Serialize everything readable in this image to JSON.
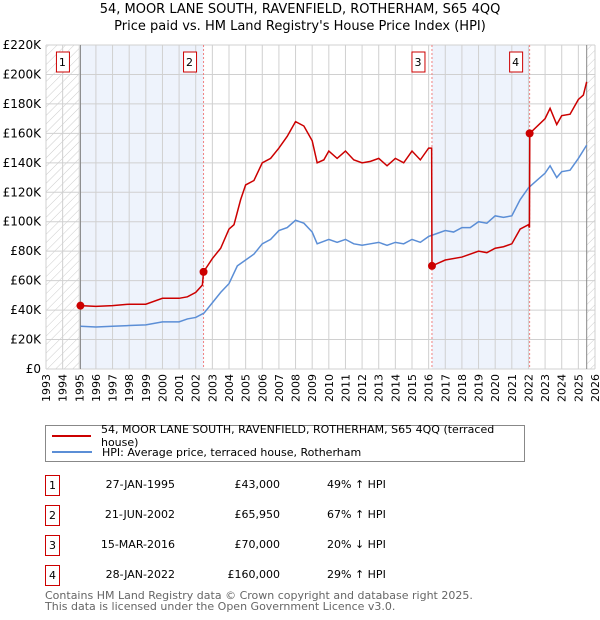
{
  "chart_data": {
    "type": "line",
    "title": "54, MOOR LANE SOUTH, RAVENFIELD, ROTHERHAM, S65 4QQ",
    "subtitle": "Price paid vs. HM Land Registry's House Price Index (HPI)",
    "xlim": [
      1993,
      2026
    ],
    "ylim": [
      0,
      220000
    ],
    "x_ticks": [
      "1993",
      "1994",
      "1995",
      "1996",
      "1997",
      "1998",
      "1999",
      "2000",
      "2001",
      "2002",
      "2003",
      "2004",
      "2005",
      "2006",
      "2007",
      "2008",
      "2009",
      "2010",
      "2011",
      "2012",
      "2013",
      "2014",
      "2015",
      "2016",
      "2017",
      "2018",
      "2019",
      "2020",
      "2021",
      "2022",
      "2023",
      "2024",
      "2025",
      "2026"
    ],
    "y_ticks": [
      "£0",
      "£20K",
      "£40K",
      "£60K",
      "£80K",
      "£100K",
      "£120K",
      "£140K",
      "£160K",
      "£180K",
      "£200K",
      "£220K"
    ],
    "grid": true,
    "series": [
      {
        "name": "54, MOOR LANE SOUTH, RAVENFIELD, ROTHERHAM, S65 4QQ (terraced house)",
        "color": "#cc0000",
        "x": [
          1995.07,
          1996,
          1997,
          1998,
          1999,
          2000,
          2001,
          2001.5,
          2002,
          2002.4,
          2002.47,
          2003,
          2003.5,
          2004,
          2004.3,
          2004.7,
          2005,
          2005.5,
          2006,
          2006.5,
          2007,
          2007.5,
          2008,
          2008.5,
          2009,
          2009.3,
          2009.7,
          2010,
          2010.5,
          2011,
          2011.5,
          2012,
          2012.5,
          2013,
          2013.5,
          2014,
          2014.5,
          2015,
          2015.5,
          2016,
          2016.18,
          2016.2,
          2017,
          2018,
          2019,
          2019.5,
          2020,
          2020.5,
          2021,
          2021.5,
          2022,
          2022.06,
          2022.08,
          2023,
          2023.3,
          2023.7,
          2024,
          2024.5,
          2025,
          2025.3,
          2025.5
        ],
        "y": [
          43000,
          42500,
          43000,
          44000,
          44000,
          48000,
          48000,
          49000,
          52000,
          57000,
          65950,
          75000,
          82000,
          95000,
          98000,
          115000,
          125000,
          128000,
          140000,
          143000,
          150000,
          158000,
          168000,
          165000,
          155000,
          140000,
          142000,
          148000,
          143000,
          148000,
          142000,
          140000,
          141000,
          143000,
          138000,
          143000,
          140000,
          148000,
          142000,
          150000,
          150000,
          70000,
          74000,
          76000,
          80000,
          79000,
          82000,
          83000,
          85000,
          95000,
          98000,
          96000,
          160000,
          170000,
          177000,
          166000,
          172000,
          173000,
          183000,
          186000,
          195000
        ]
      },
      {
        "name": "HPI: Average price, terraced house, Rotherham",
        "color": "#5b8ed6",
        "x": [
          1995.07,
          1996,
          1997,
          1998,
          1999,
          2000,
          2001,
          2001.5,
          2002,
          2002.5,
          2003,
          2003.5,
          2004,
          2004.5,
          2005,
          2005.5,
          2006,
          2006.5,
          2007,
          2007.5,
          2008,
          2008.5,
          2009,
          2009.3,
          2010,
          2010.5,
          2011,
          2011.5,
          2012,
          2012.5,
          2013,
          2013.5,
          2014,
          2014.5,
          2015,
          2015.5,
          2016,
          2016.5,
          2017,
          2017.5,
          2018,
          2018.5,
          2019,
          2019.5,
          2020,
          2020.5,
          2021,
          2021.5,
          2022,
          2022.5,
          2023,
          2023.3,
          2023.7,
          2024,
          2024.5,
          2025,
          2025.5
        ],
        "y": [
          29000,
          28500,
          29000,
          29500,
          30000,
          32000,
          32000,
          34000,
          35000,
          38000,
          45000,
          52000,
          58000,
          70000,
          74000,
          78000,
          85000,
          88000,
          94000,
          96000,
          101000,
          99000,
          93000,
          85000,
          88000,
          86000,
          88000,
          85000,
          84000,
          85000,
          86000,
          84000,
          86000,
          85000,
          88000,
          86000,
          90000,
          92000,
          94000,
          93000,
          96000,
          96000,
          100000,
          99000,
          104000,
          103000,
          104000,
          115000,
          123000,
          128000,
          133000,
          138000,
          130000,
          134000,
          135000,
          143000,
          152000
        ]
      }
    ],
    "sales": [
      {
        "label": "1",
        "x": 1995.07,
        "y": 43000
      },
      {
        "label": "2",
        "x": 2002.47,
        "y": 65950
      },
      {
        "label": "3",
        "x": 2016.2,
        "y": 70000
      },
      {
        "label": "4",
        "x": 2022.07,
        "y": 160000
      }
    ],
    "shaded_ranges": [
      [
        1995.07,
        2002.47
      ],
      [
        2016.2,
        2022.07
      ]
    ],
    "hatched_ranges": [
      [
        1993,
        1995.07
      ],
      [
        2025.5,
        2026
      ]
    ]
  },
  "table": [
    {
      "num": "1",
      "date": "27-JAN-1995",
      "price": "£43,000",
      "hpi": "49% ↑ HPI"
    },
    {
      "num": "2",
      "date": "21-JUN-2002",
      "price": "£65,950",
      "hpi": "67% ↑ HPI"
    },
    {
      "num": "3",
      "date": "15-MAR-2016",
      "price": "£70,000",
      "hpi": "20% ↓ HPI"
    },
    {
      "num": "4",
      "date": "28-JAN-2022",
      "price": "£160,000",
      "hpi": "29% ↑ HPI"
    }
  ],
  "footer": [
    "Contains HM Land Registry data © Crown copyright and database right 2025.",
    "This data is licensed under the Open Government Licence v3.0."
  ]
}
